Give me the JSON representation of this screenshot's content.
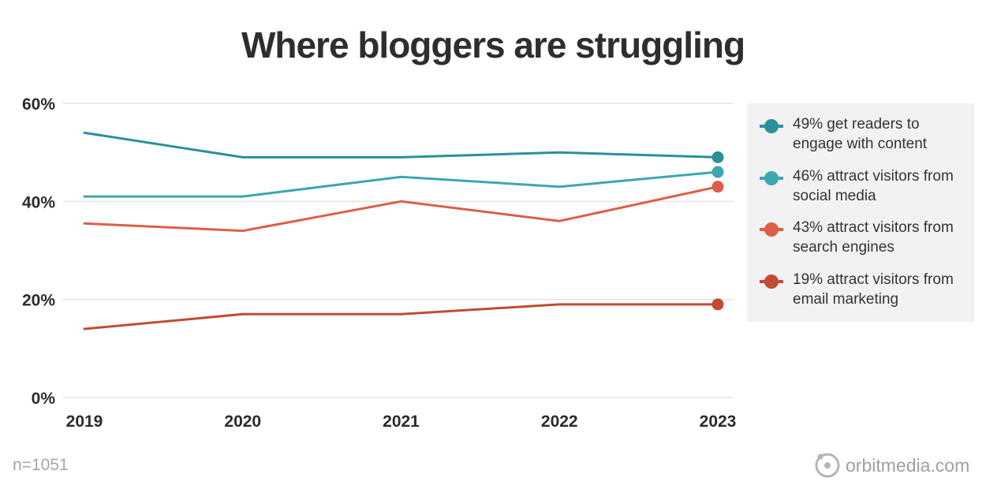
{
  "chart_data": {
    "type": "line",
    "title": "Where bloggers are struggling",
    "x": [
      "2019",
      "2020",
      "2021",
      "2022",
      "2023"
    ],
    "ylim": [
      0,
      60
    ],
    "yticks": [
      "0%",
      "20%",
      "40%",
      "60%"
    ],
    "ytick_values": [
      0,
      20,
      40,
      60
    ],
    "grid": true,
    "legend_position": "right",
    "series": [
      {
        "name": "49% get readers to engage with content",
        "values": [
          54,
          49,
          49,
          50,
          49
        ],
        "color": "#2c8f9c"
      },
      {
        "name": "46% attract visitors from social media",
        "values": [
          41,
          41,
          45,
          43,
          46
        ],
        "color": "#3ea6b2"
      },
      {
        "name": "43% attract visitors from search engines",
        "values": [
          35.5,
          34,
          40,
          36,
          43
        ],
        "color": "#dd5f47"
      },
      {
        "name": "19% attract visitors from email marketing",
        "values": [
          14,
          17,
          17,
          19,
          19
        ],
        "color": "#c24b33"
      }
    ]
  },
  "footnote": "n=1051",
  "brand": {
    "text": "orbitmedia.com",
    "icon": "orbit-logo-icon"
  }
}
